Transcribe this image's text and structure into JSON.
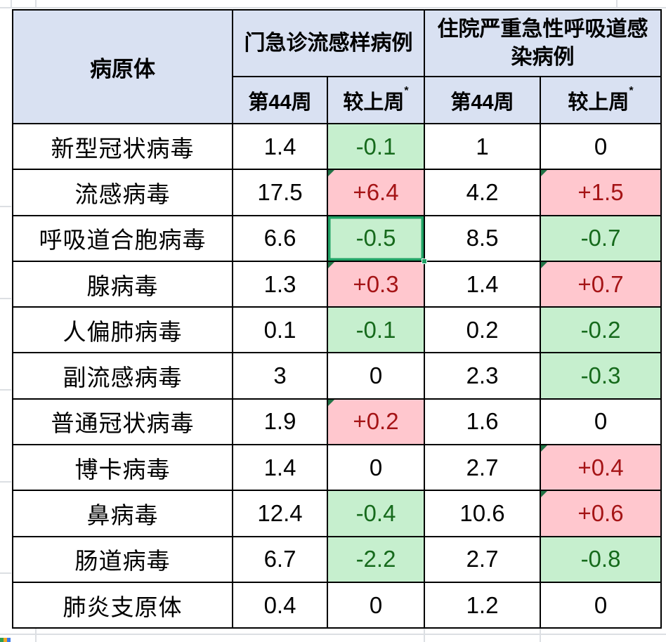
{
  "table": {
    "header": {
      "pathogen_label": "病原体",
      "outpatient_group_label": "门急诊流感样病例",
      "inpatient_group_label": "住院严重急性呼吸道感\n染病例",
      "week_label": "第44周",
      "change_label": "较上周",
      "footnote_marker": "*"
    },
    "rows": [
      {
        "name": "新型冠状病毒",
        "opd_week": "1.4",
        "opd_change": {
          "text": "-0.1",
          "trend": "down"
        },
        "sari_week": "1",
        "sari_change": {
          "text": "0",
          "trend": "flat"
        }
      },
      {
        "name": "流感病毒",
        "opd_week": "17.5",
        "opd_change": {
          "text": "+6.4",
          "trend": "up",
          "marker": true
        },
        "sari_week": "4.2",
        "sari_change": {
          "text": "+1.5",
          "trend": "up",
          "marker": true
        }
      },
      {
        "name": "呼吸道合胞病毒",
        "opd_week": "6.6",
        "opd_change": {
          "text": "-0.5",
          "trend": "down",
          "selected": true
        },
        "sari_week": "8.5",
        "sari_change": {
          "text": "-0.7",
          "trend": "down"
        }
      },
      {
        "name": "腺病毒",
        "opd_week": "1.3",
        "opd_change": {
          "text": "+0.3",
          "trend": "up",
          "marker": true
        },
        "sari_week": "1.4",
        "sari_change": {
          "text": "+0.7",
          "trend": "up",
          "marker": true
        }
      },
      {
        "name": "人偏肺病毒",
        "opd_week": "0.1",
        "opd_change": {
          "text": "-0.1",
          "trend": "down"
        },
        "sari_week": "0.2",
        "sari_change": {
          "text": "-0.2",
          "trend": "down"
        }
      },
      {
        "name": "副流感病毒",
        "opd_week": "3",
        "opd_change": {
          "text": "0",
          "trend": "flat"
        },
        "sari_week": "2.3",
        "sari_change": {
          "text": "-0.3",
          "trend": "down"
        }
      },
      {
        "name": "普通冠状病毒",
        "opd_week": "1.9",
        "opd_change": {
          "text": "+0.2",
          "trend": "up",
          "marker": true
        },
        "sari_week": "1.6",
        "sari_change": {
          "text": "0",
          "trend": "flat"
        }
      },
      {
        "name": "博卡病毒",
        "opd_week": "1.4",
        "opd_change": {
          "text": "0",
          "trend": "flat"
        },
        "sari_week": "2.7",
        "sari_change": {
          "text": "+0.4",
          "trend": "up",
          "marker": true
        }
      },
      {
        "name": "鼻病毒",
        "opd_week": "12.4",
        "opd_change": {
          "text": "-0.4",
          "trend": "down"
        },
        "sari_week": "10.6",
        "sari_change": {
          "text": "+0.6",
          "trend": "up",
          "marker": true
        }
      },
      {
        "name": "肠道病毒",
        "opd_week": "6.7",
        "opd_change": {
          "text": "-2.2",
          "trend": "down"
        },
        "sari_week": "2.7",
        "sari_change": {
          "text": "-0.8",
          "trend": "down"
        }
      },
      {
        "name": "肺炎支原体",
        "opd_week": "0.4",
        "opd_change": {
          "text": "0",
          "trend": "flat"
        },
        "sari_week": "1.2",
        "sari_change": {
          "text": "0",
          "trend": "flat"
        }
      }
    ]
  },
  "colors": {
    "header_bg": "#d9e1f2",
    "decrease_bg": "#c6efce",
    "decrease_text": "#166a1c",
    "increase_bg": "#ffc7ce",
    "increase_text": "#a51416",
    "selection_green": "#21a366",
    "error_marker_green": "#217346",
    "grid_border": "#000000"
  }
}
